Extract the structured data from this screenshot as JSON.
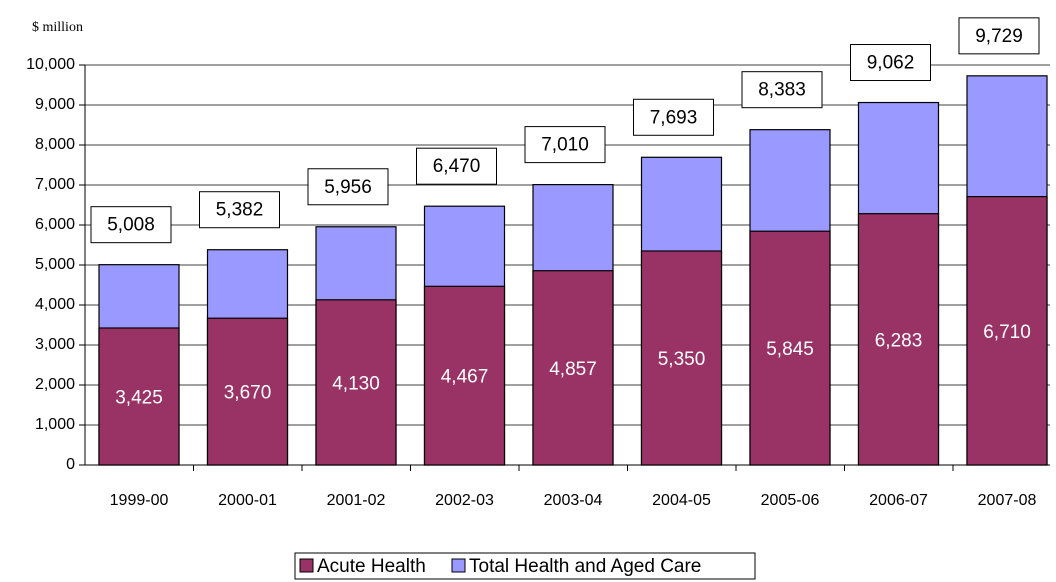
{
  "chart_data": {
    "type": "bar",
    "overlap": true,
    "y_label": "$ million",
    "categories": [
      "1999-00",
      "2000-01",
      "2001-02",
      "2002-03",
      "2003-04",
      "2004-05",
      "2005-06",
      "2006-07",
      "2007-08"
    ],
    "series": [
      {
        "name": "Acute Health",
        "color": "#993366",
        "values": [
          3425,
          3670,
          4130,
          4467,
          4857,
          5350,
          5845,
          6283,
          6710
        ],
        "value_labels": [
          "3,425",
          "3,670",
          "4,130",
          "4,467",
          "4,857",
          "5,350",
          "5,845",
          "6,283",
          "6,710"
        ]
      },
      {
        "name": "Total Health and Aged Care",
        "color": "#9999ff",
        "values": [
          5008,
          5382,
          5956,
          6470,
          7010,
          7693,
          8383,
          9062,
          9729
        ],
        "value_labels": [
          "5,008",
          "5,382",
          "5,956",
          "6,470",
          "7,010",
          "7,693",
          "8,383",
          "9,062",
          "9,729"
        ]
      }
    ],
    "ylim": [
      0,
      10000
    ],
    "yticks": [
      0,
      {
        "value": 1000,
        "label": "1,000"
      },
      {
        "value": 2000,
        "label": "2,000"
      },
      {
        "value": 3000,
        "label": "3,000"
      },
      {
        "value": 4000,
        "label": "4,000"
      },
      {
        "value": 5000,
        "label": "5,000"
      },
      {
        "value": 6000,
        "label": "6,000"
      },
      {
        "value": 7000,
        "label": "7,000"
      },
      {
        "value": 8000,
        "label": "8,000"
      },
      {
        "value": 9000,
        "label": "9,000"
      },
      {
        "value": 10000,
        "label": "10,000"
      }
    ],
    "grid": true,
    "legend": "bottom"
  }
}
